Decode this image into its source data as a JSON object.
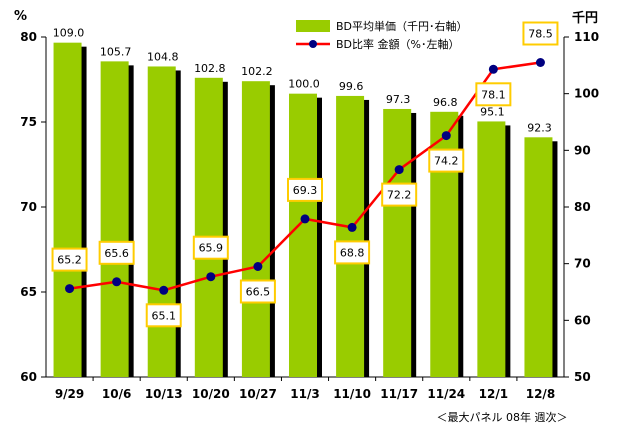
{
  "chart_data": {
    "type": "bar+line",
    "categories": [
      "9/29",
      "10/6",
      "10/13",
      "10/20",
      "10/27",
      "11/3",
      "11/10",
      "11/17",
      "11/24",
      "12/1",
      "12/8"
    ],
    "series": [
      {
        "name": "BD平均単価（千円･右軸）",
        "type": "bar",
        "axis": "right",
        "color": "#99cc00",
        "shadow_color": "#000000",
        "values": [
          109.0,
          105.7,
          104.8,
          102.8,
          102.2,
          100.0,
          99.6,
          97.3,
          96.8,
          95.1,
          92.3
        ],
        "labels": [
          "109.0",
          "105.7",
          "104.8",
          "102.8",
          "102.2",
          "100.0",
          "99.6",
          "97.3",
          "96.8",
          "95.1",
          "92.3"
        ]
      },
      {
        "name": "BD比率 金額（%･左軸）",
        "type": "line",
        "axis": "left",
        "color": "#ff0000",
        "marker_color": "#000080",
        "label_box_color": "#ffcc00",
        "values": [
          65.2,
          65.6,
          65.1,
          65.9,
          66.5,
          69.3,
          68.8,
          72.2,
          74.2,
          78.1,
          78.5
        ],
        "labels": [
          "65.2",
          "65.6",
          "65.1",
          "65.9",
          "66.5",
          "69.3",
          "68.8",
          "72.2",
          "74.2",
          "78.1",
          "78.5"
        ]
      }
    ],
    "left_axis": {
      "unit": "%",
      "ylim": [
        60,
        80
      ],
      "ticks": [
        "60",
        "65",
        "70",
        "75",
        "80"
      ]
    },
    "right_axis": {
      "unit": "千円",
      "ylim": [
        50,
        110
      ],
      "ticks": [
        "50",
        "60",
        "70",
        "80",
        "90",
        "100",
        "110"
      ]
    },
    "legend_position": "top-center",
    "grid": false,
    "note": "＜最大パネル 08年 週次＞"
  }
}
